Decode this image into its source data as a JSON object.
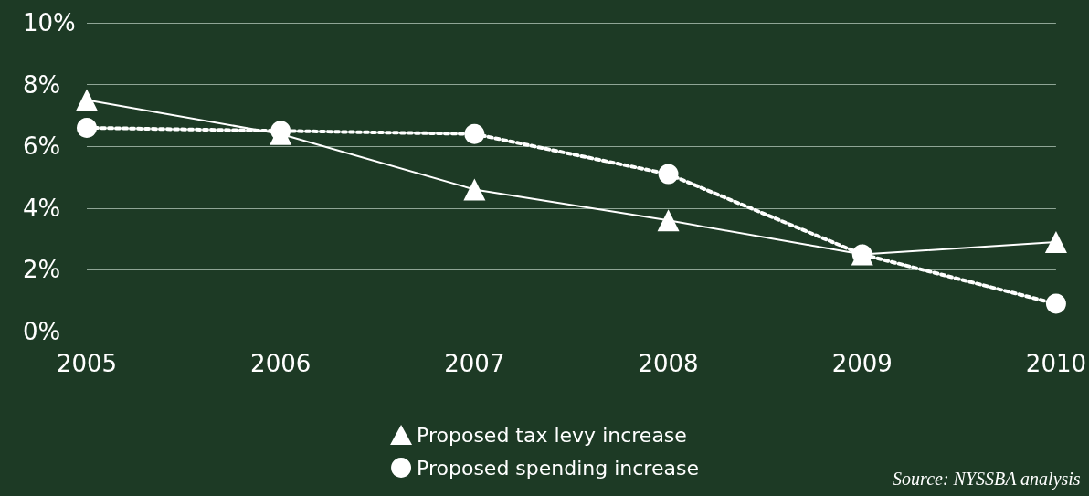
{
  "chart_data": {
    "type": "line",
    "categories": [
      "2005",
      "2006",
      "2007",
      "2008",
      "2009",
      "2010"
    ],
    "series": [
      {
        "name": "Proposed tax levy increase",
        "color": "#ffffff",
        "marker": "triangle",
        "line_style": "solid",
        "values": [
          7.5,
          6.4,
          4.6,
          3.6,
          2.5,
          2.9
        ]
      },
      {
        "name": "Proposed spending increase",
        "color": "#ffffff",
        "marker": "circle",
        "line_style": "dotted",
        "values": [
          6.6,
          6.5,
          6.4,
          5.1,
          2.5,
          0.9
        ]
      }
    ],
    "ylim": [
      0,
      10
    ],
    "yticks": [
      {
        "value": 0,
        "label": "0%"
      },
      {
        "value": 2,
        "label": "2%"
      },
      {
        "value": 4,
        "label": "4%"
      },
      {
        "value": 6,
        "label": "6%"
      },
      {
        "value": 8,
        "label": "8%"
      },
      {
        "value": 10,
        "label": "10%"
      }
    ],
    "grid": "y",
    "legend": "bottom",
    "annotations": [
      "Source: NYSSBA analysis"
    ]
  }
}
